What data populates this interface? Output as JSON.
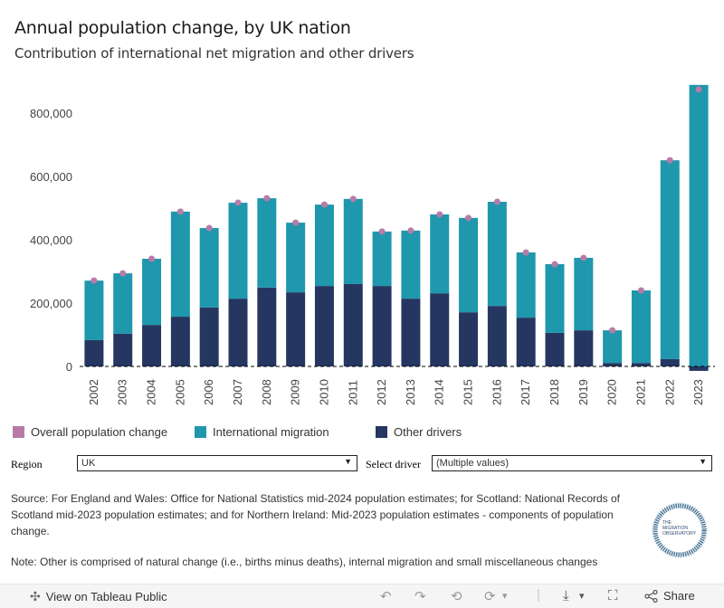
{
  "header": {
    "title": "Annual population change, by UK nation",
    "subtitle": "Contribution of international net migration and other drivers"
  },
  "chart_data": {
    "type": "bar",
    "stacked": true,
    "title": "Annual population change, by UK nation",
    "subtitle": "Contribution of international net migration and other drivers",
    "xlabel": "",
    "ylabel": "",
    "ylim": [
      -30000,
      900000
    ],
    "yticks": [
      0,
      200000,
      400000,
      600000,
      800000
    ],
    "ytick_labels": [
      "0",
      "200,000",
      "400,000",
      "600,000",
      "800,000"
    ],
    "grid": false,
    "zero_line": "dashed",
    "legend_position": "bottom",
    "categories": [
      "2002",
      "2003",
      "2004",
      "2005",
      "2006",
      "2007",
      "2008",
      "2009",
      "2010",
      "2011",
      "2012",
      "2013",
      "2014",
      "2015",
      "2016",
      "2017",
      "2018",
      "2019",
      "2020",
      "2021",
      "2022",
      "2023"
    ],
    "series": [
      {
        "name": "Other drivers",
        "kind": "bar",
        "color": "#253761",
        "values": [
          83000,
          103000,
          131000,
          157000,
          186000,
          214000,
          249000,
          234000,
          254000,
          260000,
          254000,
          214000,
          231000,
          171000,
          191000,
          154000,
          106000,
          114000,
          11000,
          11000,
          23000,
          -14000
        ]
      },
      {
        "name": "International migration",
        "kind": "bar",
        "color": "#1f97ad",
        "values": [
          188000,
          191000,
          209000,
          332000,
          251000,
          303000,
          282000,
          220000,
          257000,
          269000,
          172000,
          215000,
          249000,
          298000,
          329000,
          206000,
          217000,
          229000,
          103000,
          229000,
          628000,
          889000
        ]
      },
      {
        "name": "Overall population change",
        "kind": "point",
        "color": "#b87ba8",
        "values": [
          271000,
          294000,
          340000,
          489000,
          437000,
          517000,
          531000,
          454000,
          511000,
          529000,
          426000,
          429000,
          480000,
          469000,
          520000,
          360000,
          323000,
          343000,
          114000,
          240000,
          651000,
          875000
        ]
      }
    ]
  },
  "legend": {
    "items": [
      {
        "label": "Overall population change",
        "color": "#b87ba8"
      },
      {
        "label": "International migration",
        "color": "#1f97ad"
      },
      {
        "label": "Other drivers",
        "color": "#253761"
      }
    ]
  },
  "filters": {
    "region_label": "Region",
    "region_value": "UK",
    "driver_label": "Select driver",
    "driver_value": "(Multiple values)",
    "arrow": "▼"
  },
  "source_text": "Source: For England and Wales: Office for National Statistics mid-2024 population estimates; for Scotland: National Records of Scotland mid-2023 population estimates; and for Northern Ireland: Mid-2023 population estimates - components of population change.",
  "note_text": "Note: Other is comprised of natural change (i.e., births minus deaths), internal migration and small miscellaneous changes",
  "logo": {
    "lines": [
      "THE",
      "MIGRATION",
      "OBSERVATORY"
    ]
  },
  "toolbar": {
    "view_label": "View on Tableau Public",
    "share_label": "Share",
    "icons": {
      "undo": "↶",
      "redo": "↷",
      "revert": "⟲",
      "refresh": "⟳",
      "dropdown": "▾",
      "download": "⤓",
      "fullscreen": "⛶",
      "share": "⋖",
      "tableau": "✣"
    }
  }
}
